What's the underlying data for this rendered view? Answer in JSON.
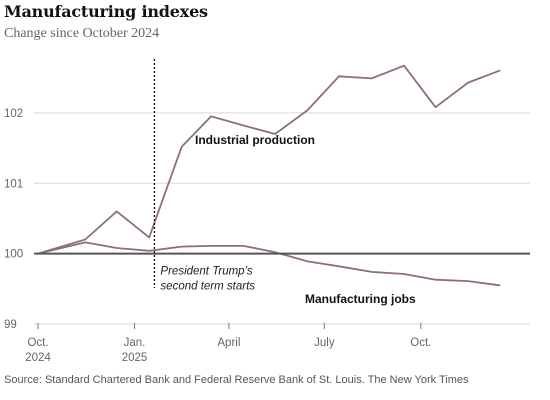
{
  "title": "Manufacturing indexes",
  "subtitle": "Change since October 2024",
  "source": "Source: Standard Chartered Bank and Federal Reserve Bank of St. Louis.",
  "credit": "The New York Times",
  "colors": {
    "line": "#8d6f7c",
    "baseline": "#555555",
    "grid": "#d8d8d8",
    "marker": "#111111"
  },
  "chart_data": {
    "type": "line",
    "x": [
      "2024-10",
      "2024-11",
      "2024-12",
      "2025-01",
      "2025-02",
      "2025-03",
      "2025-04",
      "2025-05",
      "2025-06",
      "2025-07",
      "2025-08",
      "2025-09",
      "2025-10",
      "2025-11",
      "2025-12"
    ],
    "series": [
      {
        "name": "Industrial production",
        "values": [
          100.0,
          100.2,
          100.6,
          100.23,
          101.52,
          101.95,
          101.82,
          101.7,
          102.04,
          102.52,
          102.49,
          102.67,
          102.08,
          102.43,
          102.6
        ]
      },
      {
        "name": "Manufacturing jobs",
        "values": [
          100.0,
          100.16,
          100.08,
          100.04,
          100.1,
          100.11,
          100.11,
          100.02,
          99.89,
          99.82,
          99.74,
          99.71,
          99.63,
          99.61,
          99.55
        ]
      }
    ],
    "ylim": [
      99,
      103
    ],
    "yticks": [
      "99",
      "100",
      "101",
      "102"
    ],
    "xticks": [
      {
        "label": "Oct.",
        "sub": "2024",
        "x": "2024-10"
      },
      {
        "label": "Jan.",
        "sub": "2025",
        "x": "2025-01"
      },
      {
        "label": "April",
        "sub": "",
        "x": "2025-04"
      },
      {
        "label": "July",
        "sub": "",
        "x": "2025-07"
      },
      {
        "label": "Oct.",
        "sub": "",
        "x": "2025-10"
      }
    ],
    "baseline": 100,
    "grid": true,
    "annotation": {
      "x": "2025-01-20",
      "lines": [
        "President Trump’s",
        "second term starts"
      ]
    }
  }
}
